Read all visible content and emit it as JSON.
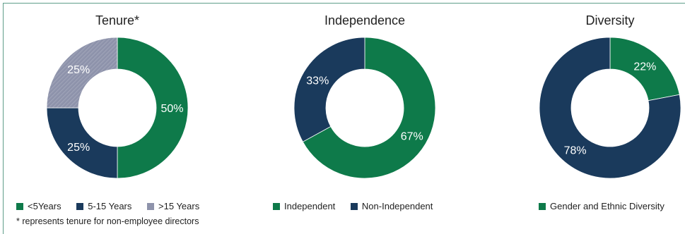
{
  "colors": {
    "green": "#0e7a4a",
    "navy": "#1a3a5c",
    "gray": "#8e93ab"
  },
  "footnote": "* represents tenure for non-employee directors",
  "chart_data": [
    {
      "type": "pie",
      "title": "Tenure*",
      "categories": [
        "<5Years",
        "5-15 Years",
        ">15 Years"
      ],
      "values": [
        50,
        25,
        25
      ],
      "labels": [
        "50%",
        "25%",
        "25%"
      ],
      "colors": [
        "#0e7a4a",
        "#1a3a5c",
        "#8e93ab"
      ],
      "hatched": [
        false,
        false,
        true
      ]
    },
    {
      "type": "pie",
      "title": "Independence",
      "categories": [
        "Independent",
        "Non-Independent"
      ],
      "values": [
        67,
        33
      ],
      "labels": [
        "67%",
        "33%"
      ],
      "colors": [
        "#0e7a4a",
        "#1a3a5c"
      ],
      "hatched": [
        false,
        false
      ]
    },
    {
      "type": "pie",
      "title": "Diversity",
      "categories": [
        "Gender and Ethnic Diversity",
        ""
      ],
      "values": [
        22,
        78
      ],
      "labels": [
        "22%",
        "78%"
      ],
      "colors": [
        "#0e7a4a",
        "#1a3a5c"
      ],
      "hatched": [
        false,
        false
      ]
    }
  ]
}
